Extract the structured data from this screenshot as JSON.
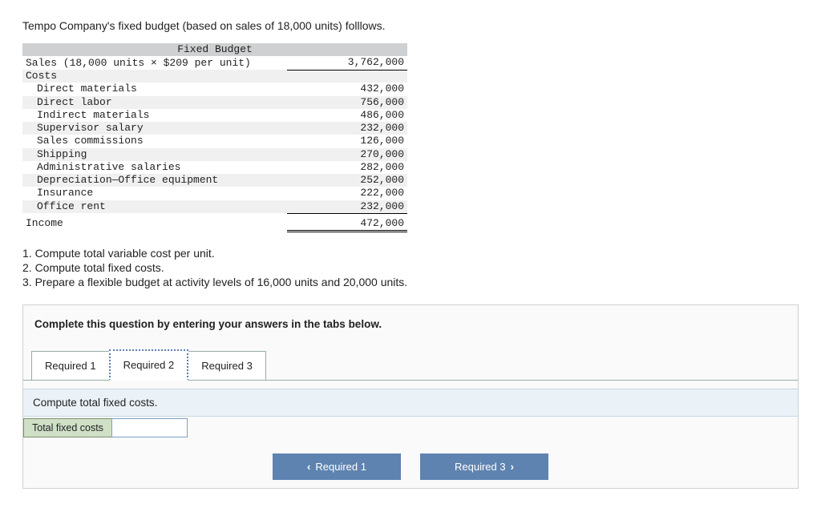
{
  "intro": "Tempo Company's fixed budget (based on sales of 18,000 units) folllows.",
  "budget": {
    "header": "Fixed Budget",
    "sales_label": "Sales (18,000 units × $209 per unit)",
    "sales_value": "3,762,000",
    "costs_label": "Costs",
    "rows": [
      {
        "label": "Direct materials",
        "value": "432,000"
      },
      {
        "label": "Direct labor",
        "value": "756,000"
      },
      {
        "label": "Indirect materials",
        "value": "486,000"
      },
      {
        "label": "Supervisor salary",
        "value": "232,000"
      },
      {
        "label": "Sales commissions",
        "value": "126,000"
      },
      {
        "label": "Shipping",
        "value": "270,000"
      },
      {
        "label": "Administrative salaries",
        "value": "282,000"
      },
      {
        "label": "Depreciation—Office equipment",
        "value": "252,000"
      },
      {
        "label": "Insurance",
        "value": "222,000"
      },
      {
        "label": "Office rent",
        "value": "232,000"
      }
    ],
    "income_label": "Income",
    "income_value": "472,000"
  },
  "questions": {
    "q1": "1. Compute total variable cost per unit.",
    "q2": "2. Compute total fixed costs.",
    "q3": "3. Prepare a flexible budget at activity levels of 16,000 units and 20,000 units."
  },
  "panel": {
    "instruction": "Complete this question by entering your answers in the tabs below.",
    "tabs": [
      {
        "label": "Required 1"
      },
      {
        "label": "Required 2"
      },
      {
        "label": "Required 3"
      }
    ],
    "active_tab": 1,
    "sub_prompt": "Compute total fixed costs.",
    "answer_label": "Total fixed costs",
    "answer_value": ""
  },
  "nav": {
    "prev": "Required 1",
    "next": "Required 3"
  },
  "colors": {
    "header_bg": "#cfd0d1",
    "alt_bg": "#f0f0f0",
    "panel_bg": "#fafafa",
    "subq_bg": "#eaf2f8",
    "label_bg": "#cfe0c6",
    "btn_bg": "#5f83b0",
    "tab_active_border": "#5a7cb5"
  }
}
